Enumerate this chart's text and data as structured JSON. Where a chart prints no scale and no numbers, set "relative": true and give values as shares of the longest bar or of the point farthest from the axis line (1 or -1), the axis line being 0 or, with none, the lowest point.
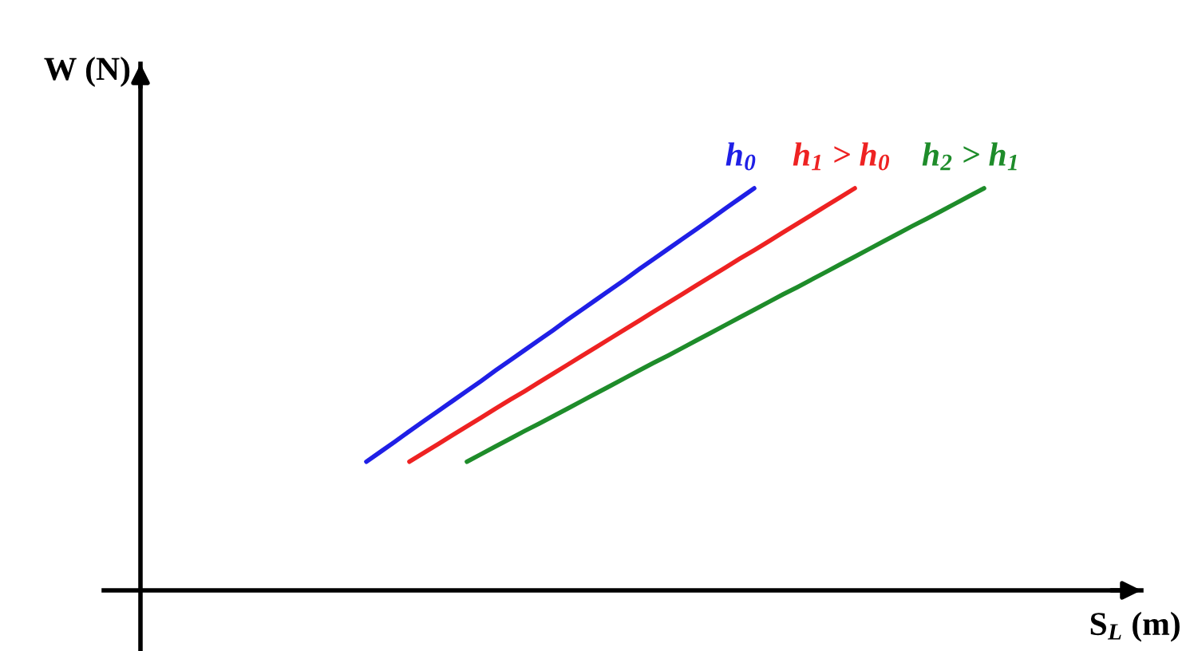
{
  "chart_data": {
    "type": "line",
    "relative": true,
    "xlabel": "S$_{L}$ (m)",
    "annotations": [
      "W (N)"
    ],
    "line_style": "solid",
    "categories": [
      null,
      null,
      null,
      null,
      null,
      null,
      null,
      null,
      null,
      null,
      null,
      null,
      null,
      null,
      null,
      null,
      null,
      null,
      null,
      null,
      null,
      null,
      null,
      null,
      null,
      null,
      null,
      null,
      null,
      null,
      null,
      null,
      null,
      null,
      null,
      null,
      null,
      null,
      null,
      null,
      null,
      null,
      null,
      null
    ],
    "series": [
      {
        "name": "h$_{0}$",
        "color": "#1f1fe6",
        "values": [
          0.32,
          0.345,
          0.37,
          0.396,
          0.421,
          0.446,
          0.471,
          0.496,
          0.521,
          0.547,
          0.572,
          0.597,
          0.622,
          0.647,
          0.673,
          0.698,
          0.723,
          0.748,
          0.773,
          0.799,
          0.824,
          0.849,
          0.874,
          0.899,
          0.924,
          0.95,
          0.975,
          1,
          null,
          null,
          null,
          null,
          null,
          null,
          null,
          null,
          null,
          null,
          null,
          null,
          null,
          null,
          null,
          null
        ]
      },
      {
        "name": "h$_{1}$ > h$_{0}$",
        "color": "#ee2222",
        "values": [
          null,
          null,
          null,
          0.32,
          0.342,
          0.364,
          0.386,
          0.408,
          0.43,
          0.452,
          0.474,
          0.495,
          0.517,
          0.539,
          0.561,
          0.583,
          0.605,
          0.627,
          0.649,
          0.671,
          0.693,
          0.715,
          0.737,
          0.759,
          0.781,
          0.803,
          0.825,
          0.846,
          0.868,
          0.89,
          0.912,
          0.934,
          0.956,
          0.978,
          1,
          null,
          null,
          null,
          null,
          null,
          null,
          null,
          null,
          null
        ]
      },
      {
        "name": "h$_{2}$ > h$_{1}$",
        "color": "#1e8c2a",
        "values": [
          null,
          null,
          null,
          null,
          null,
          null,
          null,
          0.32,
          0.339,
          0.358,
          0.377,
          0.396,
          0.414,
          0.433,
          0.452,
          0.471,
          0.49,
          0.509,
          0.528,
          0.547,
          0.566,
          0.584,
          0.603,
          0.622,
          0.641,
          0.66,
          0.679,
          0.698,
          0.717,
          0.736,
          0.754,
          0.773,
          0.792,
          0.811,
          0.83,
          0.849,
          0.868,
          0.887,
          0.906,
          0.924,
          0.943,
          0.962,
          0.981,
          1
        ]
      }
    ]
  }
}
